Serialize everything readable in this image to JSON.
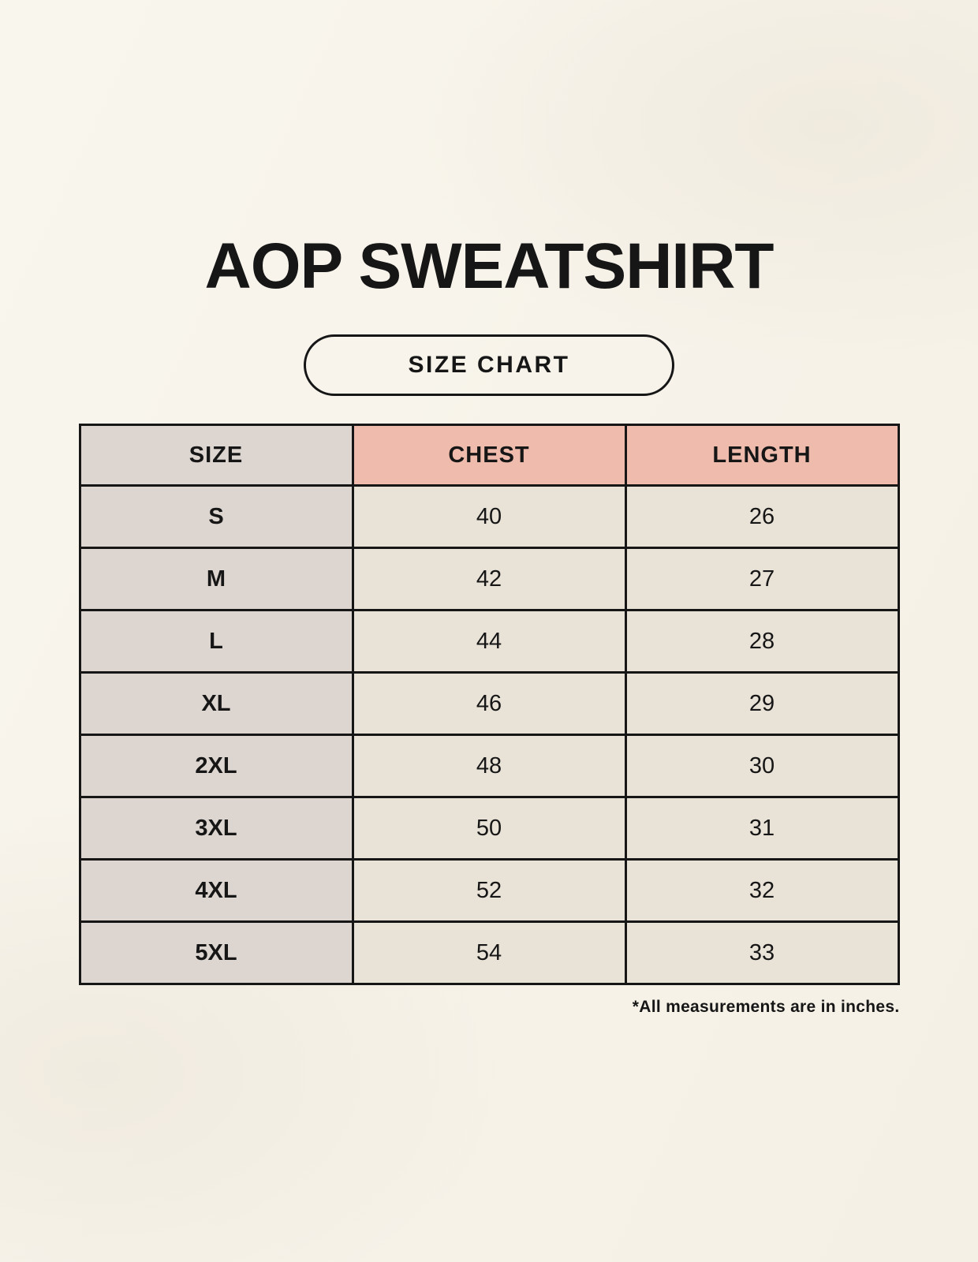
{
  "header": {
    "title": "AOP SWEATSHIRT",
    "badge_label": "SIZE CHART"
  },
  "chart_data": {
    "type": "table",
    "title": "AOP SWEATSHIRT",
    "subtitle": "SIZE CHART",
    "columns": [
      "SIZE",
      "CHEST",
      "LENGTH"
    ],
    "rows": [
      [
        "S",
        "40",
        "26"
      ],
      [
        "M",
        "42",
        "27"
      ],
      [
        "L",
        "44",
        "28"
      ],
      [
        "XL",
        "46",
        "29"
      ],
      [
        "2XL",
        "48",
        "30"
      ],
      [
        "3XL",
        "50",
        "31"
      ],
      [
        "4XL",
        "52",
        "32"
      ],
      [
        "5XL",
        "54",
        "33"
      ]
    ],
    "units": "inches"
  },
  "footnote": "*All measurements are in inches.",
  "colors": {
    "background": "#f7f3ea",
    "size_column": "#ddd6d0",
    "header_accent": "#efbbac",
    "cell": "#e9e2d7",
    "border": "#161616",
    "text": "#161616"
  }
}
